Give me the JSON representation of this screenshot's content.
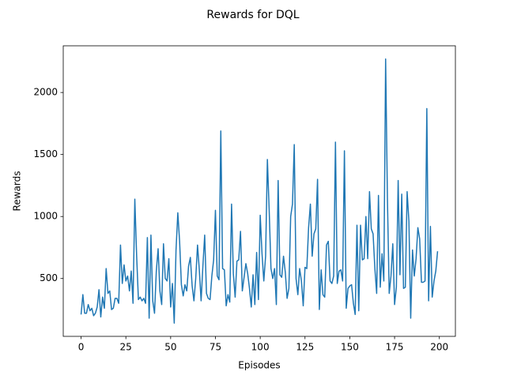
{
  "chart_data": {
    "type": "line",
    "title": "Rewards for DQL",
    "x_label": "Episodes",
    "y_label": "Rewards",
    "x": [
      0,
      1,
      2,
      3,
      4,
      5,
      6,
      7,
      8,
      9,
      10,
      11,
      12,
      13,
      14,
      15,
      16,
      17,
      18,
      19,
      20,
      21,
      22,
      23,
      24,
      25,
      26,
      27,
      28,
      29,
      30,
      31,
      32,
      33,
      34,
      35,
      36,
      37,
      38,
      39,
      40,
      41,
      42,
      43,
      44,
      45,
      46,
      47,
      48,
      49,
      50,
      51,
      52,
      53,
      54,
      55,
      56,
      57,
      58,
      59,
      60,
      61,
      62,
      63,
      64,
      65,
      66,
      67,
      68,
      69,
      70,
      71,
      72,
      73,
      74,
      75,
      76,
      77,
      78,
      79,
      80,
      81,
      82,
      83,
      84,
      85,
      86,
      87,
      88,
      89,
      90,
      91,
      92,
      93,
      94,
      95,
      96,
      97,
      98,
      99,
      100,
      101,
      102,
      103,
      104,
      105,
      106,
      107,
      108,
      109,
      110,
      111,
      112,
      113,
      114,
      115,
      116,
      117,
      118,
      119,
      120,
      121,
      122,
      123,
      124,
      125,
      126,
      127,
      128,
      129,
      130,
      131,
      132,
      133,
      134,
      135,
      136,
      137,
      138,
      139,
      140,
      141,
      142,
      143,
      144,
      145,
      146,
      147,
      148,
      149,
      150,
      151,
      152,
      153,
      154,
      155,
      156,
      157,
      158,
      159,
      160,
      161,
      162,
      163,
      164,
      165,
      166,
      167,
      168,
      169,
      170,
      171,
      172,
      173,
      174,
      175,
      176,
      177,
      178,
      179,
      180,
      181,
      182,
      183,
      184,
      185,
      186,
      187,
      188,
      189,
      190,
      191,
      192,
      193,
      194,
      195,
      196,
      197,
      198,
      199
    ],
    "series": [
      {
        "color": "#1f77b4",
        "values": [
          210,
          370,
          220,
          220,
          290,
          240,
          260,
          200,
          220,
          270,
          410,
          190,
          350,
          260,
          580,
          380,
          400,
          250,
          260,
          340,
          340,
          300,
          770,
          460,
          610,
          480,
          520,
          400,
          560,
          300,
          1140,
          690,
          330,
          350,
          320,
          340,
          300,
          830,
          180,
          850,
          320,
          220,
          560,
          740,
          400,
          290,
          780,
          500,
          480,
          660,
          270,
          460,
          140,
          730,
          1030,
          800,
          450,
          360,
          450,
          400,
          600,
          670,
          440,
          320,
          500,
          770,
          570,
          320,
          600,
          850,
          380,
          340,
          330,
          520,
          650,
          1050,
          520,
          490,
          1690,
          580,
          570,
          280,
          370,
          310,
          1100,
          540,
          350,
          640,
          650,
          880,
          400,
          510,
          620,
          540,
          420,
          270,
          530,
          290,
          710,
          330,
          1010,
          700,
          480,
          680,
          1460,
          1050,
          580,
          500,
          580,
          290,
          1290,
          530,
          510,
          680,
          550,
          340,
          420,
          1000,
          1100,
          1580,
          500,
          370,
          580,
          480,
          280,
          590,
          580,
          910,
          1100,
          680,
          860,
          900,
          1300,
          250,
          570,
          370,
          350,
          770,
          800,
          480,
          460,
          520,
          1600,
          460,
          560,
          570,
          480,
          1530,
          260,
          420,
          440,
          450,
          300,
          210,
          930,
          240,
          930,
          650,
          660,
          1000,
          660,
          1200,
          900,
          860,
          580,
          380,
          1170,
          430,
          700,
          480,
          2270,
          1150,
          380,
          520,
          780,
          290,
          430,
          1290,
          530,
          1180,
          420,
          430,
          1200,
          960,
          180,
          730,
          520,
          660,
          910,
          820,
          470,
          470,
          480,
          1870,
          320,
          920,
          350,
          480,
          560,
          720
        ]
      }
    ],
    "xlim": [
      -9.95,
      208.95
    ],
    "ylim": [
      33.5,
      2376.5
    ],
    "xticks": [
      0,
      25,
      50,
      75,
      100,
      125,
      150,
      175,
      200
    ],
    "yticks": [
      500,
      1000,
      1500,
      2000
    ]
  }
}
